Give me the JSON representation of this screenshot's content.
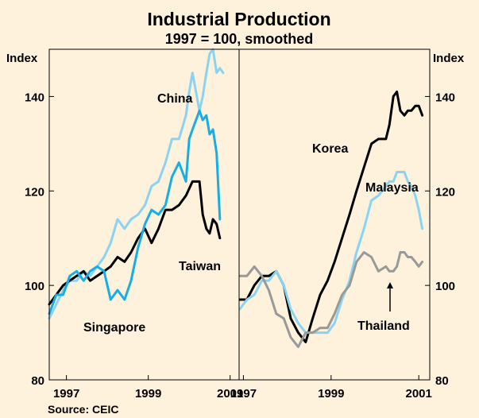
{
  "chart_data": {
    "type": "line",
    "title": "Industrial Production",
    "subtitle": "1997 = 100, smoothed",
    "ylabel_left": "Index",
    "ylabel_right": "Index",
    "ylim": [
      80,
      150
    ],
    "yticks": [
      80,
      100,
      120,
      140
    ],
    "source": "Source:    CEIC",
    "colors": {
      "background": "#fef2dc",
      "dark": "#000000",
      "light_blue": "#8ad4f2",
      "mid_blue": "#17aee6",
      "grey": "#999999"
    },
    "panels": [
      {
        "name": "left",
        "xlim": [
          1996.58,
          2001.2
        ],
        "xticks": [
          {
            "value": 1997,
            "label": "1997"
          },
          {
            "value": 1999,
            "label": "1999"
          },
          {
            "value": 2001,
            "label": "2001"
          }
        ],
        "series": [
          {
            "name": "China",
            "color": "light_blue",
            "x": [
              1996.58,
              1996.75,
              1996.92,
              1997.08,
              1997.25,
              1997.42,
              1997.58,
              1997.75,
              1997.92,
              1998.08,
              1998.25,
              1998.42,
              1998.58,
              1998.75,
              1998.92,
              1999.08,
              1999.25,
              1999.42,
              1999.58,
              1999.75,
              1999.92,
              2000.0,
              2000.08,
              2000.25,
              2000.33,
              2000.42,
              2000.5,
              2000.58,
              2000.67,
              2000.75,
              2000.83
            ],
            "values": [
              93,
              96,
              99,
              101,
              101,
              103,
              102,
              104,
              106,
              109,
              114,
              112,
              114,
              115,
              117,
              121,
              122,
              126,
              131,
              131,
              136,
              141,
              145,
              137,
              140,
              145,
              149,
              150,
              145,
              146,
              145
            ]
          },
          {
            "name": "Taiwan",
            "color": "dark",
            "x": [
              1996.58,
              1996.75,
              1996.92,
              1997.08,
              1997.25,
              1997.42,
              1997.58,
              1997.75,
              1997.92,
              1998.08,
              1998.25,
              1998.42,
              1998.58,
              1998.75,
              1998.92,
              1999.08,
              1999.25,
              1999.42,
              1999.58,
              1999.75,
              1999.92,
              2000.08,
              2000.25,
              2000.33,
              2000.42,
              2000.5,
              2000.58,
              2000.67,
              2000.75
            ],
            "values": [
              96,
              98,
              100,
              101,
              102,
              103,
              101,
              102,
              103,
              104,
              106,
              105,
              107,
              110,
              112,
              109,
              112,
              116,
              116,
              117,
              119,
              122,
              122,
              115,
              112,
              111,
              114,
              113,
              110
            ]
          },
          {
            "name": "Singapore",
            "color": "mid_blue",
            "x": [
              1996.58,
              1996.75,
              1996.92,
              1997.08,
              1997.25,
              1997.42,
              1997.58,
              1997.75,
              1997.92,
              1998.08,
              1998.25,
              1998.42,
              1998.58,
              1998.75,
              1998.92,
              1999.08,
              1999.25,
              1999.42,
              1999.58,
              1999.75,
              1999.92,
              2000.0,
              2000.08,
              2000.25,
              2000.33,
              2000.42,
              2000.5,
              2000.58,
              2000.67,
              2000.75
            ],
            "values": [
              94,
              98,
              98,
              102,
              103,
              101,
              103,
              104,
              103,
              97,
              99,
              97,
              101,
              108,
              113,
              116,
              115,
              117,
              123,
              126,
              122,
              131,
              133,
              137,
              135,
              136,
              132,
              133,
              128,
              114
            ]
          }
        ],
        "labels": [
          {
            "text": "China",
            "series": "China"
          },
          {
            "text": "Taiwan",
            "series": "Taiwan"
          },
          {
            "text": "Singapore",
            "series": "Singapore"
          }
        ]
      },
      {
        "name": "right",
        "xlim": [
          1996.92,
          2001.25
        ],
        "xticks": [
          {
            "value": 1997,
            "label": "1997"
          },
          {
            "value": 1999,
            "label": "1999"
          },
          {
            "value": 2001,
            "label": "2001"
          }
        ],
        "series": [
          {
            "name": "Korea",
            "color": "dark",
            "x": [
              1996.92,
              1997.08,
              1997.25,
              1997.42,
              1997.58,
              1997.75,
              1997.92,
              1998.08,
              1998.25,
              1998.42,
              1998.58,
              1998.75,
              1998.92,
              1999.08,
              1999.25,
              1999.42,
              1999.58,
              1999.75,
              1999.92,
              2000.08,
              2000.25,
              2000.33,
              2000.42,
              2000.5,
              2000.58,
              2000.67,
              2000.75,
              2000.83,
              2000.92,
              2001.0,
              2001.08
            ],
            "values": [
              97,
              97,
              100,
              102,
              102,
              103,
              100,
              93,
              90,
              88,
              93,
              98,
              101,
              105,
              110,
              115,
              120,
              125,
              130,
              131,
              131,
              134,
              140,
              141,
              137,
              136,
              137,
              137,
              138,
              138,
              136
            ]
          },
          {
            "name": "Malaysia",
            "color": "light_blue",
            "x": [
              1996.92,
              1997.08,
              1997.25,
              1997.42,
              1997.58,
              1997.75,
              1997.92,
              1998.08,
              1998.25,
              1998.42,
              1998.58,
              1998.75,
              1998.92,
              1999.08,
              1999.25,
              1999.42,
              1999.58,
              1999.75,
              1999.92,
              2000.08,
              2000.25,
              2000.33,
              2000.42,
              2000.5,
              2000.58,
              2000.67,
              2000.75,
              2000.83,
              2000.92,
              2001.0,
              2001.08
            ],
            "values": [
              95,
              97,
              98,
              101,
              101,
              103,
              100,
              95,
              92,
              90,
              90,
              90,
              90,
              92,
              97,
              101,
              107,
              112,
              118,
              119,
              121,
              122,
              122,
              124,
              124,
              124,
              122,
              121,
              119,
              116,
              112
            ]
          },
          {
            "name": "Thailand",
            "color": "grey",
            "x": [
              1996.92,
              1997.08,
              1997.25,
              1997.42,
              1997.58,
              1997.75,
              1997.92,
              1998.08,
              1998.25,
              1998.42,
              1998.58,
              1998.75,
              1998.92,
              1999.08,
              1999.25,
              1999.42,
              1999.58,
              1999.75,
              1999.92,
              2000.08,
              2000.25,
              2000.33,
              2000.42,
              2000.5,
              2000.58,
              2000.67,
              2000.75,
              2000.83,
              2000.92,
              2001.0,
              2001.08
            ],
            "values": [
              102,
              102,
              104,
              102,
              99,
              94,
              93,
              89,
              87,
              90,
              90,
              91,
              91,
              94,
              98,
              100,
              105,
              107,
              106,
              103,
              104,
              103,
              103,
              104,
              107,
              107,
              106,
              106,
              105,
              104,
              105
            ]
          }
        ],
        "labels": [
          {
            "text": "Korea",
            "series": "Korea"
          },
          {
            "text": "Malaysia",
            "series": "Malaysia"
          },
          {
            "text": "Thailand",
            "series": "Thailand",
            "arrow": true
          }
        ]
      }
    ]
  }
}
